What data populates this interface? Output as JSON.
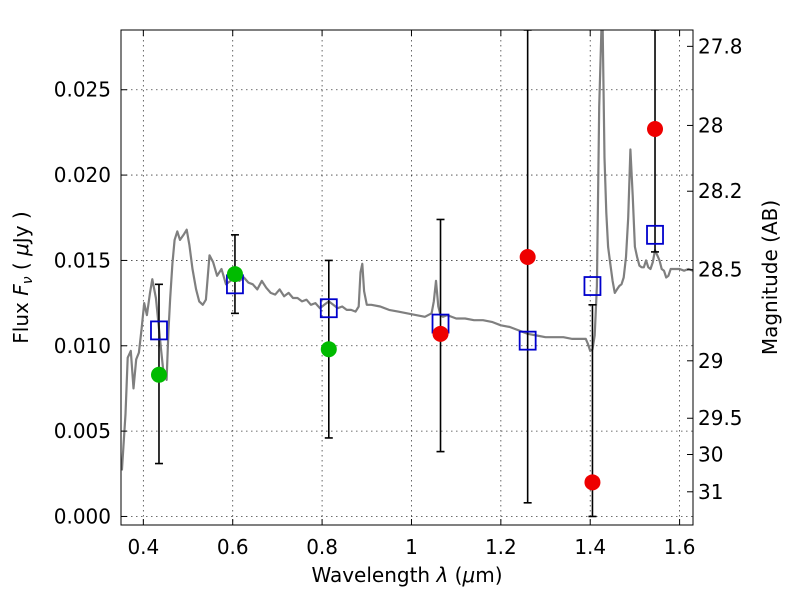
{
  "chart_data": {
    "type": "scatter",
    "xlabel": "Wavelength  λ (μm)",
    "ylabel": "Flux  F_ν  ( μJy )",
    "ylabel_right": "Magnitude (AB)",
    "xlim": [
      0.35,
      1.63
    ],
    "ylim": [
      -0.0005,
      0.0285
    ],
    "grid": true,
    "x_ticks": [
      0.4,
      0.6,
      0.8,
      1.0,
      1.2,
      1.4,
      1.6
    ],
    "x_tick_labels": [
      "0.4",
      "0.6",
      "0.8",
      "1",
      "1.2",
      "1.4",
      "1.6"
    ],
    "y_ticks": [
      0.0,
      0.005,
      0.01,
      0.015,
      0.02,
      0.025
    ],
    "y_tick_labels": [
      "0.000",
      "0.005",
      "0.010",
      "0.015",
      "0.020",
      "0.025"
    ],
    "mag_ticks": [
      27.8,
      28,
      28.2,
      28.5,
      29,
      29.5,
      30,
      31
    ],
    "mag_tick_labels": [
      "27.8",
      "28",
      "28.2",
      "28.5",
      "29",
      "29.5",
      "30",
      "31"
    ],
    "spectrum": {
      "color": "#7f7f7f",
      "x": [
        0.352,
        0.36,
        0.365,
        0.372,
        0.378,
        0.384,
        0.39,
        0.396,
        0.402,
        0.408,
        0.415,
        0.42,
        0.428,
        0.435,
        0.44,
        0.444,
        0.448,
        0.452,
        0.456,
        0.46,
        0.465,
        0.47,
        0.476,
        0.482,
        0.49,
        0.497,
        0.503,
        0.51,
        0.518,
        0.525,
        0.533,
        0.54,
        0.548,
        0.556,
        0.565,
        0.575,
        0.585,
        0.595,
        0.605,
        0.615,
        0.625,
        0.635,
        0.645,
        0.655,
        0.665,
        0.675,
        0.685,
        0.695,
        0.705,
        0.715,
        0.725,
        0.735,
        0.745,
        0.755,
        0.765,
        0.775,
        0.785,
        0.795,
        0.805,
        0.815,
        0.825,
        0.835,
        0.845,
        0.855,
        0.865,
        0.875,
        0.882,
        0.886,
        0.89,
        0.894,
        0.9,
        0.91,
        0.93,
        0.95,
        0.97,
        0.99,
        1.01,
        1.03,
        1.045,
        1.05,
        1.055,
        1.06,
        1.065,
        1.07,
        1.08,
        1.1,
        1.12,
        1.14,
        1.16,
        1.18,
        1.2,
        1.22,
        1.24,
        1.26,
        1.28,
        1.3,
        1.32,
        1.34,
        1.36,
        1.38,
        1.39,
        1.395,
        1.4,
        1.405,
        1.41,
        1.415,
        1.42,
        1.425,
        1.428,
        1.432,
        1.436,
        1.44,
        1.445,
        1.45,
        1.455,
        1.46,
        1.465,
        1.47,
        1.475,
        1.48,
        1.485,
        1.49,
        1.495,
        1.5,
        1.505,
        1.51,
        1.515,
        1.52,
        1.525,
        1.53,
        1.535,
        1.54,
        1.545,
        1.55,
        1.555,
        1.56,
        1.565,
        1.57,
        1.575,
        1.58,
        1.59,
        1.6,
        1.61,
        1.62,
        1.63
      ],
      "y": [
        0.0027,
        0.006,
        0.0093,
        0.0097,
        0.0075,
        0.0092,
        0.0096,
        0.011,
        0.0125,
        0.0118,
        0.0131,
        0.0139,
        0.0128,
        0.011,
        0.0097,
        0.0087,
        0.0084,
        0.008,
        0.0108,
        0.0128,
        0.0148,
        0.0162,
        0.0167,
        0.0162,
        0.0165,
        0.0168,
        0.0159,
        0.0145,
        0.0133,
        0.0126,
        0.0124,
        0.0127,
        0.0153,
        0.0149,
        0.0141,
        0.0145,
        0.0136,
        0.0138,
        0.0141,
        0.0138,
        0.014,
        0.0137,
        0.0136,
        0.0133,
        0.0138,
        0.0134,
        0.0131,
        0.013,
        0.0133,
        0.0129,
        0.0131,
        0.0128,
        0.0128,
        0.0126,
        0.0127,
        0.0124,
        0.0125,
        0.0122,
        0.0124,
        0.0126,
        0.0124,
        0.0122,
        0.0123,
        0.0121,
        0.0121,
        0.012,
        0.0123,
        0.0143,
        0.0148,
        0.0132,
        0.0124,
        0.0124,
        0.0123,
        0.0121,
        0.012,
        0.0119,
        0.0118,
        0.0117,
        0.0119,
        0.0126,
        0.0138,
        0.0123,
        0.0118,
        0.0117,
        0.0118,
        0.0116,
        0.0116,
        0.0115,
        0.0115,
        0.0114,
        0.0112,
        0.0111,
        0.0109,
        0.0107,
        0.0106,
        0.0105,
        0.0105,
        0.0105,
        0.0104,
        0.0104,
        0.0104,
        0.0101,
        0.0097,
        0.0098,
        0.0106,
        0.0135,
        0.024,
        0.0285,
        0.0285,
        0.021,
        0.0178,
        0.0158,
        0.0148,
        0.0138,
        0.0131,
        0.0133,
        0.0135,
        0.0136,
        0.014,
        0.0152,
        0.0175,
        0.0215,
        0.0188,
        0.0158,
        0.0152,
        0.0147,
        0.0146,
        0.0146,
        0.015,
        0.0146,
        0.0145,
        0.0149,
        0.0156,
        0.0153,
        0.015,
        0.0145,
        0.0144,
        0.014,
        0.0141,
        0.0145,
        0.0145,
        0.0145,
        0.0144,
        0.0145,
        0.0144
      ]
    },
    "model_points": {
      "marker": "open-square",
      "color": "#0000cc",
      "x": [
        0.435,
        0.605,
        0.815,
        1.065,
        1.26,
        1.405,
        1.545
      ],
      "y": [
        0.0109,
        0.0136,
        0.0122,
        0.0113,
        0.0103,
        0.0135,
        0.0165
      ]
    },
    "detections": {
      "marker": "filled-circle",
      "color": "#00bb00",
      "x": [
        0.435,
        0.605,
        0.815
      ],
      "y": [
        0.0083,
        0.0142,
        0.0098
      ],
      "yerr_low": [
        0.0031,
        0.0119,
        0.0046
      ],
      "yerr_high": [
        0.0136,
        0.0165,
        0.015
      ]
    },
    "upper_limits": {
      "marker": "filled-circle",
      "color": "#ee0000",
      "x": [
        1.065,
        1.26,
        1.405,
        1.545
      ],
      "y": [
        0.0107,
        0.0152,
        0.002,
        0.0227
      ],
      "yerr_low": [
        0.0038,
        0.0008,
        0.0,
        0.0155
      ],
      "yerr_high": [
        0.0174,
        0.0285,
        0.0124,
        0.0285
      ]
    }
  }
}
